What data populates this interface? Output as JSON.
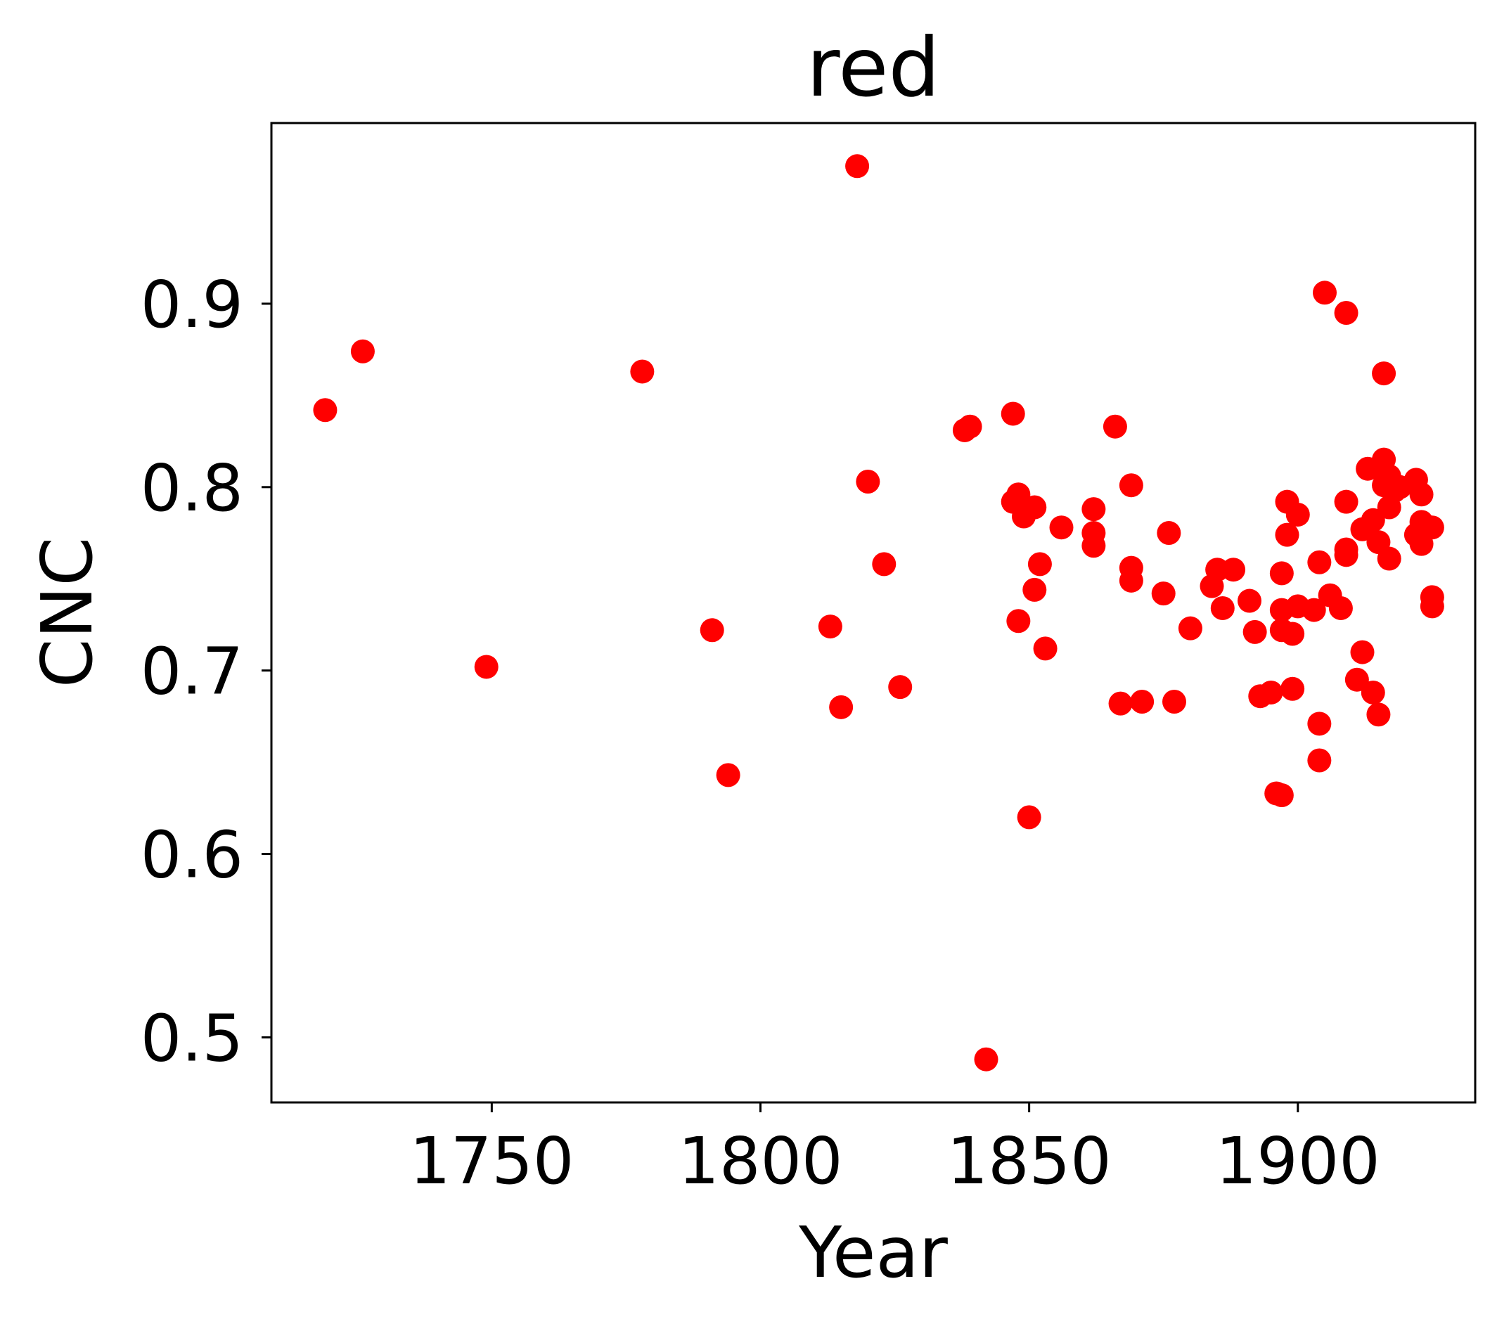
{
  "chart_data": {
    "type": "scatter",
    "title": "red",
    "xlabel": "Year",
    "ylabel": "CNC",
    "xlim": [
      1709,
      1933
    ],
    "ylim": [
      0.4645,
      0.9985
    ],
    "xticks": [
      1750,
      1800,
      1850,
      1900
    ],
    "yticks": [
      0.5,
      0.6,
      0.7,
      0.8,
      0.9
    ],
    "xtick_labels": [
      "1750",
      "1800",
      "1850",
      "1900"
    ],
    "ytick_labels": [
      "0.5",
      "0.6",
      "0.7",
      "0.8",
      "0.9"
    ],
    "grid": false,
    "legend": null,
    "colors": {
      "marker": "#ff0000",
      "axes": "#000000",
      "background": "#ffffff"
    },
    "series": [
      {
        "points": [
          [
            1719,
            0.842
          ],
          [
            1726,
            0.874
          ],
          [
            1749,
            0.702
          ],
          [
            1778,
            0.863
          ],
          [
            1791,
            0.722
          ],
          [
            1794,
            0.643
          ],
          [
            1813,
            0.724
          ],
          [
            1815,
            0.68
          ],
          [
            1818,
            0.975
          ],
          [
            1820,
            0.803
          ],
          [
            1823,
            0.758
          ],
          [
            1826,
            0.691
          ],
          [
            1838,
            0.831
          ],
          [
            1839,
            0.833
          ],
          [
            1842,
            0.488
          ],
          [
            1847,
            0.84
          ],
          [
            1847,
            0.792
          ],
          [
            1848,
            0.796
          ],
          [
            1848,
            0.727
          ],
          [
            1849,
            0.784
          ],
          [
            1850,
            0.62
          ],
          [
            1851,
            0.744
          ],
          [
            1851,
            0.789
          ],
          [
            1852,
            0.758
          ],
          [
            1853,
            0.712
          ],
          [
            1856,
            0.778
          ],
          [
            1862,
            0.788
          ],
          [
            1862,
            0.775
          ],
          [
            1862,
            0.768
          ],
          [
            1866,
            0.833
          ],
          [
            1867,
            0.682
          ],
          [
            1869,
            0.801
          ],
          [
            1869,
            0.756
          ],
          [
            1869,
            0.749
          ],
          [
            1871,
            0.683
          ],
          [
            1875,
            0.742
          ],
          [
            1876,
            0.775
          ],
          [
            1877,
            0.683
          ],
          [
            1880,
            0.723
          ],
          [
            1884,
            0.746
          ],
          [
            1885,
            0.755
          ],
          [
            1886,
            0.734
          ],
          [
            1888,
            0.755
          ],
          [
            1891,
            0.738
          ],
          [
            1892,
            0.721
          ],
          [
            1893,
            0.686
          ],
          [
            1895,
            0.688
          ],
          [
            1896,
            0.633
          ],
          [
            1897,
            0.632
          ],
          [
            1897,
            0.753
          ],
          [
            1897,
            0.733
          ],
          [
            1897,
            0.722
          ],
          [
            1898,
            0.792
          ],
          [
            1898,
            0.774
          ],
          [
            1899,
            0.72
          ],
          [
            1899,
            0.69
          ],
          [
            1900,
            0.735
          ],
          [
            1900,
            0.785
          ],
          [
            1903,
            0.733
          ],
          [
            1904,
            0.759
          ],
          [
            1904,
            0.671
          ],
          [
            1904,
            0.651
          ],
          [
            1905,
            0.906
          ],
          [
            1906,
            0.741
          ],
          [
            1908,
            0.734
          ],
          [
            1909,
            0.895
          ],
          [
            1909,
            0.792
          ],
          [
            1909,
            0.766
          ],
          [
            1909,
            0.763
          ],
          [
            1911,
            0.695
          ],
          [
            1912,
            0.71
          ],
          [
            1912,
            0.777
          ],
          [
            1913,
            0.81
          ],
          [
            1914,
            0.688
          ],
          [
            1914,
            0.782
          ],
          [
            1915,
            0.676
          ],
          [
            1915,
            0.77
          ],
          [
            1916,
            0.862
          ],
          [
            1916,
            0.815
          ],
          [
            1916,
            0.801
          ],
          [
            1917,
            0.761
          ],
          [
            1917,
            0.789
          ],
          [
            1917,
            0.806
          ],
          [
            1918,
            0.798
          ],
          [
            1919,
            0.8
          ],
          [
            1922,
            0.804
          ],
          [
            1922,
            0.774
          ],
          [
            1923,
            0.769
          ],
          [
            1923,
            0.796
          ],
          [
            1923,
            0.781
          ],
          [
            1925,
            0.778
          ],
          [
            1925,
            0.74
          ],
          [
            1925,
            0.735
          ]
        ]
      }
    ]
  }
}
